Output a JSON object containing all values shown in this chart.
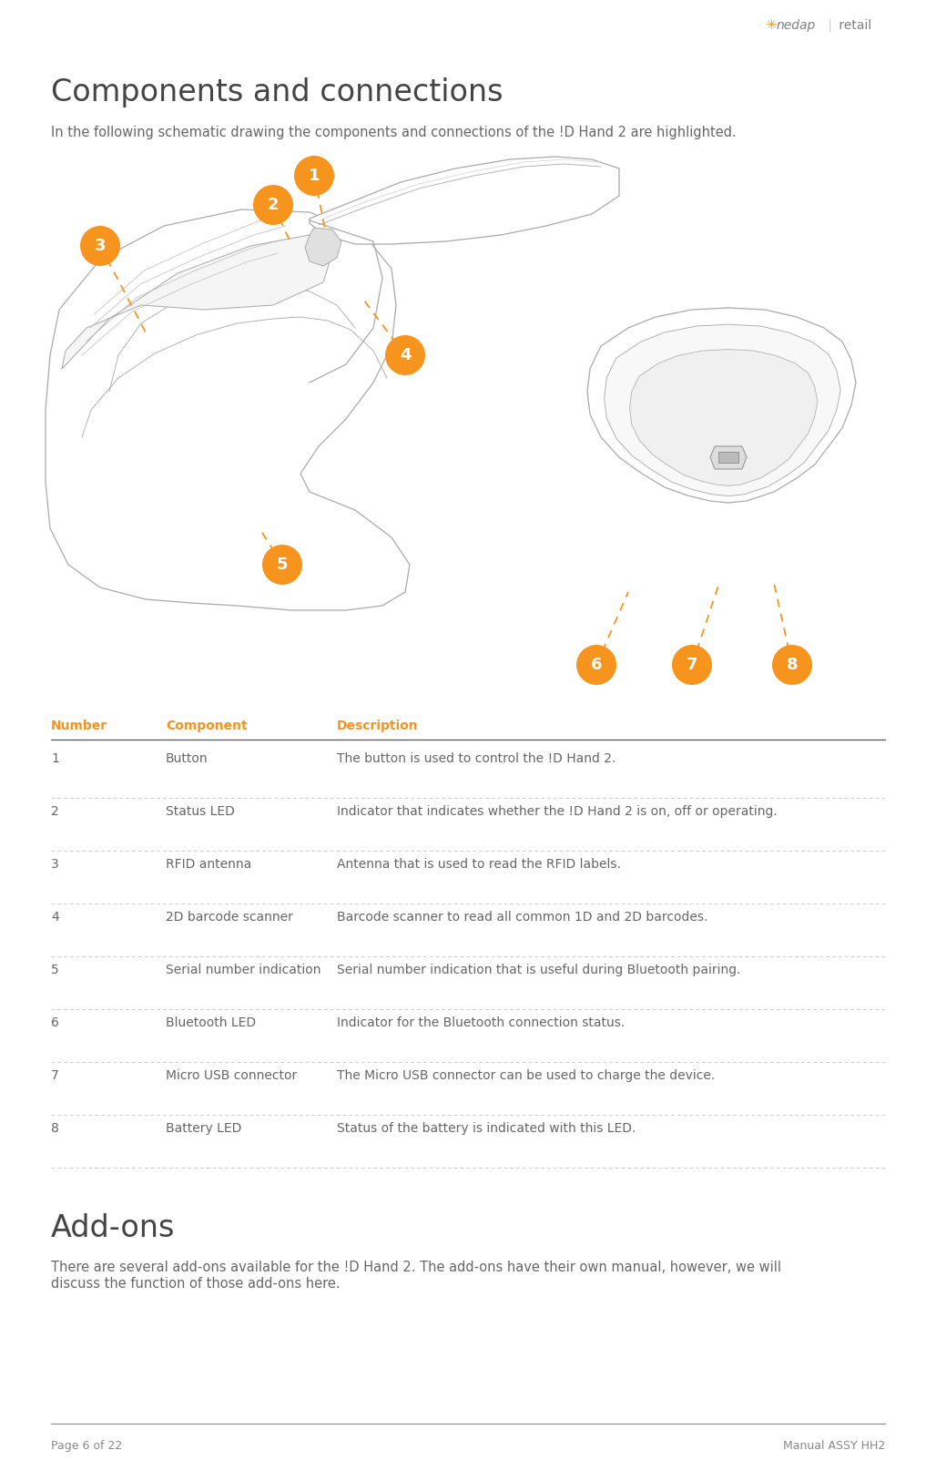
{
  "page_bg": "#ffffff",
  "logo_color": "#f7941d",
  "logo_text_color": "#808080",
  "title_components": "Components and connections",
  "intro_text": "In the following schematic drawing the components and connections of the !D Hand 2 are highlighted.",
  "table_header": [
    "Number",
    "Component",
    "Description"
  ],
  "table_header_text_color": "#f7941d",
  "table_rows": [
    [
      "1",
      "Button",
      "The button is used to control the !D Hand 2."
    ],
    [
      "2",
      "Status LED",
      "Indicator that indicates whether the !D Hand 2 is on, off or operating."
    ],
    [
      "3",
      "RFID antenna",
      "Antenna that is used to read the RFID labels."
    ],
    [
      "4",
      "2D barcode scanner",
      "Barcode scanner to read all common 1D and 2D barcodes."
    ],
    [
      "5",
      "Serial number indication",
      "Serial number indication that is useful during Bluetooth pairing."
    ],
    [
      "6",
      "Bluetooth LED",
      "Indicator for the Bluetooth connection status."
    ],
    [
      "7",
      "Micro USB connector",
      "The Micro USB connector can be used to charge the device."
    ],
    [
      "8",
      "Battery LED",
      "Status of the battery is indicated with this LED."
    ]
  ],
  "table_divider_color": "#cccccc",
  "table_text_color": "#666666",
  "addons_title": "Add-ons",
  "addons_text1": "There are several add-ons available for the !D Hand 2. The add-ons have their own manual, however, we will",
  "addons_text2": "discuss the function of those add-ons here.",
  "footer_left": "Page 6 of 22",
  "footer_right": "Manual ASSY HH2",
  "footer_line_color": "#888888",
  "footer_text_color": "#888888",
  "orange": "#f7941d",
  "white": "#ffffff",
  "device_line_color": "#aaaaaa",
  "title_fontsize": 24,
  "body_fontsize": 10.5,
  "table_fontsize": 10,
  "header_fontsize": 9.5,
  "footer_fontsize": 9
}
